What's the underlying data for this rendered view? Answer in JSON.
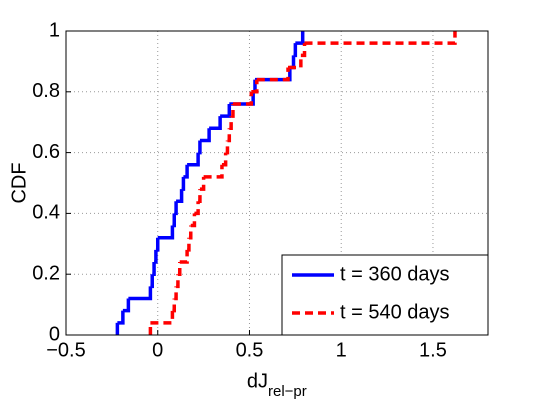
{
  "chart_data": {
    "type": "step",
    "y_label": "CDF",
    "x_label": "dJ",
    "x_label_subscript": "rel−pr",
    "xlim": [
      -0.5,
      1.8
    ],
    "ylim": [
      0,
      1
    ],
    "xticks": [
      {
        "value": -0.5,
        "label": "−0.5"
      },
      0,
      0.5,
      1,
      1.5
    ],
    "yticks": [
      0,
      0.2,
      0.4,
      0.6,
      0.8,
      1
    ],
    "grid": true,
    "legend": "lower right",
    "series": [
      {
        "name": "t = 360 days",
        "color": "#0000ff",
        "dash": false,
        "x": [
          -0.22,
          -0.22,
          -0.19,
          -0.16,
          -0.04,
          -0.03,
          -0.02,
          -0.01,
          0,
          0.08,
          0.09,
          0.1,
          0.13,
          0.14,
          0.16,
          0.22,
          0.23,
          0.28,
          0.34,
          0.39,
          0.52,
          0.53,
          0.72,
          0.74,
          0.75,
          0.79
        ],
        "values": [
          0,
          0.04,
          0.08,
          0.12,
          0.16,
          0.2,
          0.24,
          0.28,
          0.32,
          0.36,
          0.4,
          0.44,
          0.48,
          0.52,
          0.56,
          0.6,
          0.64,
          0.68,
          0.72,
          0.76,
          0.8,
          0.84,
          0.88,
          0.92,
          0.96,
          1
        ]
      },
      {
        "name": "t = 540 days",
        "color": "#ff0000",
        "dash": true,
        "x": [
          -0.04,
          -0.04,
          0.08,
          0.09,
          0.1,
          0.11,
          0.12,
          0.16,
          0.17,
          0.18,
          0.2,
          0.22,
          0.23,
          0.25,
          0.35,
          0.37,
          0.38,
          0.39,
          0.4,
          0.41,
          0.51,
          0.54,
          0.71,
          0.78,
          0.8,
          1.62
        ],
        "values": [
          0,
          0.04,
          0.08,
          0.12,
          0.16,
          0.2,
          0.24,
          0.28,
          0.32,
          0.36,
          0.4,
          0.44,
          0.48,
          0.52,
          0.56,
          0.6,
          0.64,
          0.68,
          0.72,
          0.76,
          0.8,
          0.84,
          0.88,
          0.92,
          0.96,
          1
        ]
      }
    ]
  }
}
